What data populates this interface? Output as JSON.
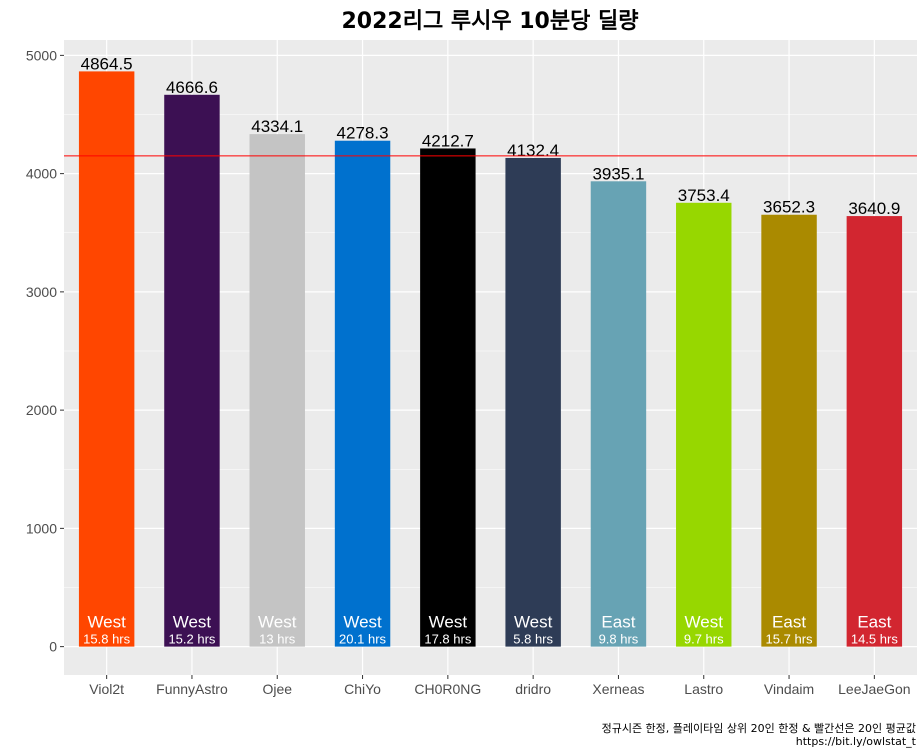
{
  "chart_data": {
    "type": "bar",
    "title": "2022리그 루시우 10분당 딜량",
    "categories": [
      "Viol2t",
      "FunnyAstro",
      "Ojee",
      "ChiYo",
      "CH0R0NG",
      "dridro",
      "Xerneas",
      "Lastro",
      "Vindaim",
      "LeeJaeGon"
    ],
    "values": [
      4864.5,
      4666.6,
      4334.1,
      4278.3,
      4212.7,
      4132.4,
      3935.1,
      3753.4,
      3652.3,
      3640.9
    ],
    "value_labels": [
      "4864.5",
      "4666.6",
      "4334.1",
      "4278.3",
      "4212.7",
      "4132.4",
      "3935.1",
      "3753.4",
      "3652.3",
      "3640.9"
    ],
    "conference": [
      "West",
      "West",
      "West",
      "West",
      "West",
      "West",
      "East",
      "West",
      "East",
      "East"
    ],
    "hours": [
      "15.8 hrs",
      "15.2 hrs",
      "13 hrs",
      "20.1 hrs",
      "17.8 hrs",
      "5.8 hrs",
      "9.8 hrs",
      "9.7 hrs",
      "15.7 hrs",
      "14.5 hrs"
    ],
    "colors": [
      "#FF4600",
      "#3C1053",
      "#C4C4C4",
      "#0071CE",
      "#000000",
      "#2E3C56",
      "#67A3B4",
      "#97D700",
      "#AA8A00",
      "#D22630"
    ],
    "inner_text_colors": [
      "#ffffff",
      "#ffffff",
      "#ffffff",
      "#ffffff",
      "#ffffff",
      "#ffffff",
      "#ffffff",
      "#ffffff",
      "#ffffff",
      "#ffffff"
    ],
    "reference_line": 4150,
    "reference_color": "#FF0000",
    "y_ticks": [
      0,
      1000,
      2000,
      3000,
      4000,
      5000
    ],
    "ylim": [
      -240,
      5130
    ],
    "xlabel": "",
    "ylabel": "",
    "grid": true,
    "caption_line1": "정규시즌 한정, 플레이타임 상위 20인 한정 & 빨간선은 20인 평균값",
    "caption_line2": "https://bit.ly/owlstat_t"
  }
}
